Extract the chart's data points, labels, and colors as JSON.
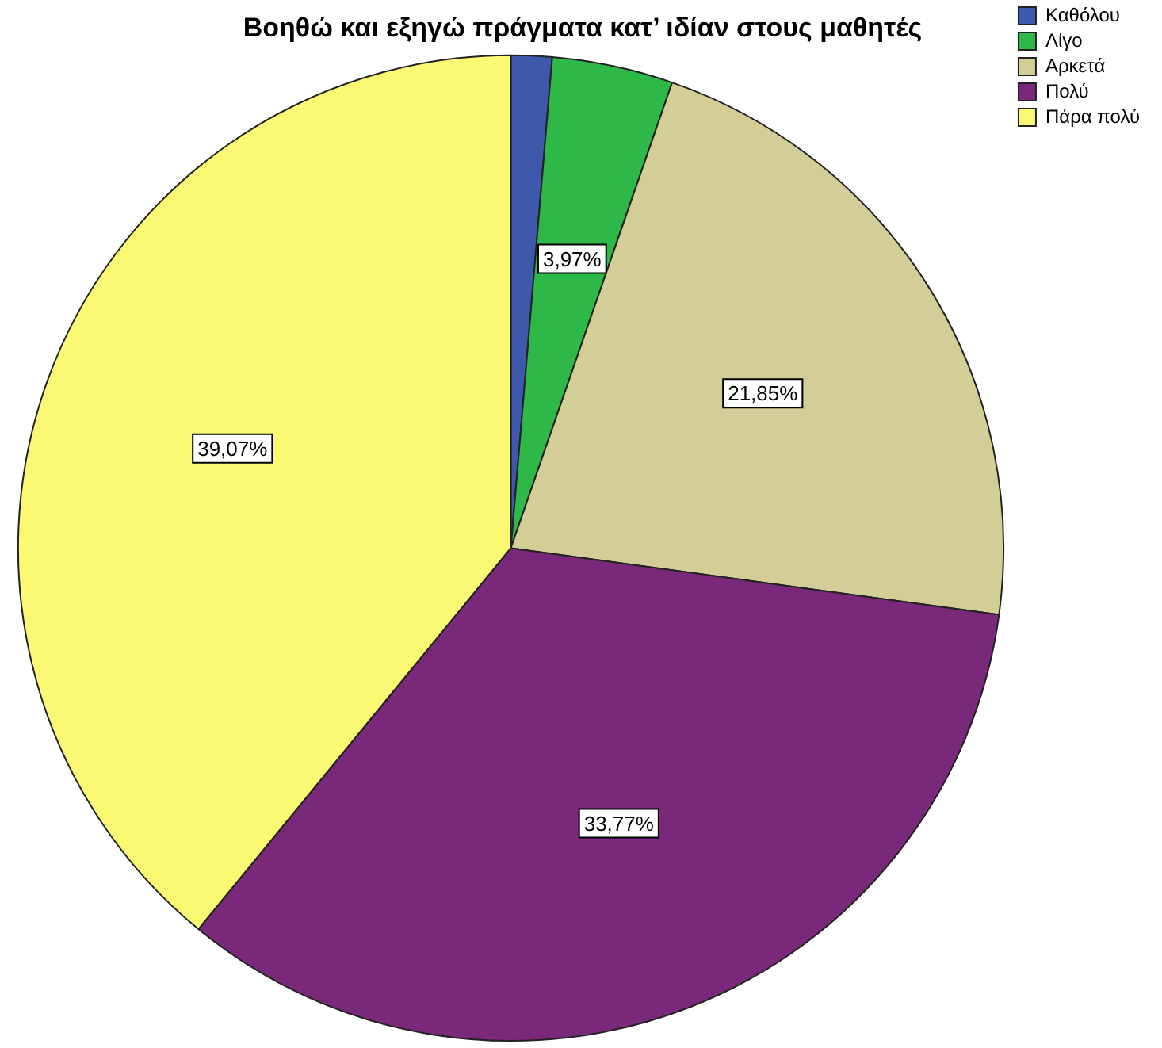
{
  "chart_data": {
    "type": "pie",
    "title": "Βοηθώ και εξηγώ πράγματα κατ’ ιδίαν στους μαθητές",
    "categories": [
      "Καθόλου",
      "Λίγο",
      "Αρκετά",
      "Πολύ",
      "Πάρα πολύ"
    ],
    "values": [
      1.34,
      3.97,
      21.85,
      33.77,
      39.07
    ],
    "value_labels": [
      null,
      "3,97%",
      "21,85%",
      "33,77%",
      "39,07%"
    ],
    "colors": [
      "#3e58ac",
      "#2eb848",
      "#d3ce97",
      "#79287a",
      "#fbf873"
    ],
    "legend": "top right"
  }
}
